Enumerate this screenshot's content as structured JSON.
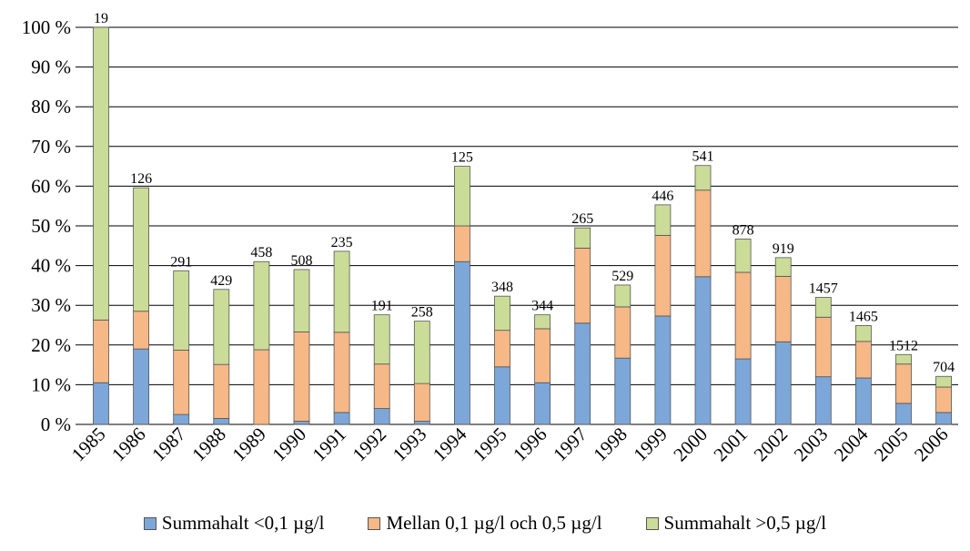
{
  "chart_data": {
    "type": "bar",
    "stacked": true,
    "title": "",
    "xlabel": "",
    "ylabel": "",
    "ylim": [
      0,
      100
    ],
    "yticks": [
      "0 %",
      "10 %",
      "20 %",
      "30 %",
      "40 %",
      "50 %",
      "60 %",
      "70 %",
      "80 %",
      "90 %",
      "100 %"
    ],
    "grid": true,
    "legend_position": "bottom",
    "categories": [
      "1985",
      "1986",
      "1987",
      "1988",
      "1989",
      "1990",
      "1991",
      "1992",
      "1993",
      "1994",
      "1995",
      "1996",
      "1997",
      "1998",
      "1999",
      "2000",
      "2001",
      "2002",
      "2003",
      "2004",
      "2005",
      "2006"
    ],
    "series": [
      {
        "name": "Summahalt <0,1 µg/l",
        "color": "#7da7d8",
        "values": [
          10.5,
          19,
          2.5,
          1.5,
          0,
          0.8,
          3,
          4,
          0.8,
          41,
          14.5,
          10.5,
          25.5,
          16.7,
          27.3,
          37.2,
          16.5,
          20.8,
          12,
          11.7,
          5.3,
          3
        ]
      },
      {
        "name": "Mellan 0,1 µg/l och 0,5 µg/l",
        "color": "#f6b886",
        "values": [
          15.8,
          9.5,
          16.2,
          13.6,
          18.8,
          22.5,
          20.2,
          11.2,
          9.5,
          9,
          9.2,
          13.6,
          18.9,
          12.9,
          20.3,
          21.8,
          21.8,
          16.5,
          15,
          9.2,
          9.9,
          6.4
        ]
      },
      {
        "name": "Summahalt >0,5 µg/l",
        "color": "#cbdc98",
        "values": [
          73.7,
          31.1,
          20,
          18.9,
          22.2,
          15.7,
          20.4,
          12.4,
          15.7,
          15,
          8.6,
          3.5,
          5.1,
          5.5,
          7.7,
          6.2,
          8.4,
          4.7,
          5,
          4,
          2.4,
          2.7
        ]
      }
    ],
    "data_labels": [
      "19",
      "126",
      "291",
      "429",
      "458",
      "508",
      "235",
      "191",
      "258",
      "125",
      "348",
      "344",
      "265",
      "529",
      "446",
      "541",
      "878",
      "919",
      "1457",
      "1465",
      "1512",
      "704"
    ]
  },
  "colors": {
    "grid": "#000000",
    "bar_outline": "#555555"
  }
}
